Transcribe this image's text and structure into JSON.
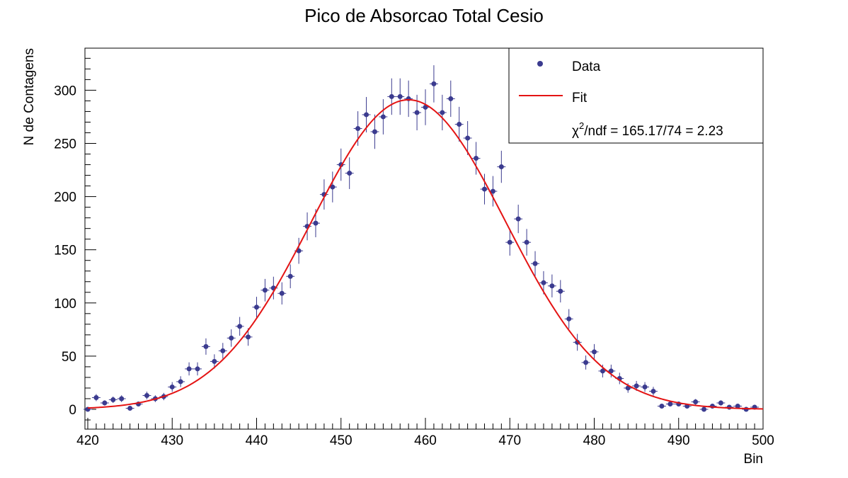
{
  "chart_data": {
    "type": "scatter",
    "title": "Pico de Absorcao Total Cesio",
    "xlabel": "Bin",
    "ylabel": "N de Contagens",
    "xlim": [
      420,
      500
    ],
    "ylim": [
      -18,
      340
    ],
    "x_ticks": [
      420,
      430,
      440,
      450,
      460,
      470,
      480,
      490,
      500
    ],
    "y_ticks": [
      0,
      50,
      100,
      150,
      200,
      250,
      300
    ],
    "grid": false,
    "legend": {
      "position": "top-right",
      "entries": [
        {
          "label": "Data",
          "kind": "marker"
        },
        {
          "label": "Fit",
          "kind": "line"
        },
        {
          "label": "χ²/ndf = 165.17/74 = 2.23",
          "prefix": "χ",
          "sup": "2",
          "rest": "/ndf = 165.17/74 = 2.23",
          "kind": "none"
        }
      ]
    },
    "colors": {
      "data": "#3b3b8f",
      "fit": "#e41414"
    },
    "series": [
      {
        "name": "Data",
        "kind": "points_with_errorbars",
        "x": [
          420,
          421,
          422,
          423,
          424,
          425,
          426,
          427,
          428,
          429,
          430,
          431,
          432,
          433,
          434,
          435,
          436,
          437,
          438,
          439,
          440,
          441,
          442,
          443,
          444,
          445,
          446,
          447,
          448,
          449,
          450,
          451,
          452,
          453,
          454,
          455,
          456,
          457,
          458,
          459,
          460,
          461,
          462,
          463,
          464,
          465,
          466,
          467,
          468,
          469,
          470,
          471,
          472,
          473,
          474,
          475,
          476,
          477,
          478,
          479,
          480,
          481,
          482,
          483,
          484,
          485,
          486,
          487,
          488,
          489,
          490,
          491,
          492,
          493,
          494,
          495,
          496,
          497,
          498,
          499
        ],
        "y": [
          0,
          11,
          6,
          9,
          10,
          1,
          5,
          13,
          10,
          12,
          21,
          26,
          38,
          38,
          59,
          45,
          55,
          67,
          78,
          68,
          96,
          112,
          114,
          109,
          125,
          149,
          172,
          175,
          202,
          209,
          230,
          222,
          264,
          277,
          261,
          275,
          294,
          294,
          292,
          279,
          284,
          306,
          279,
          292,
          268,
          255,
          236,
          207,
          205,
          228,
          157,
          179,
          157,
          137,
          119,
          116,
          111,
          85,
          63,
          44,
          54,
          36,
          36,
          29,
          20,
          22,
          21,
          17,
          3,
          5,
          5,
          3,
          7,
          0,
          3,
          6,
          2,
          3,
          0,
          2
        ]
      },
      {
        "name": "Fit",
        "kind": "gaussian_curve",
        "amplitude": 291,
        "mean": 458,
        "sigma": 11.5,
        "x_range": [
          420,
          500
        ]
      }
    ]
  }
}
